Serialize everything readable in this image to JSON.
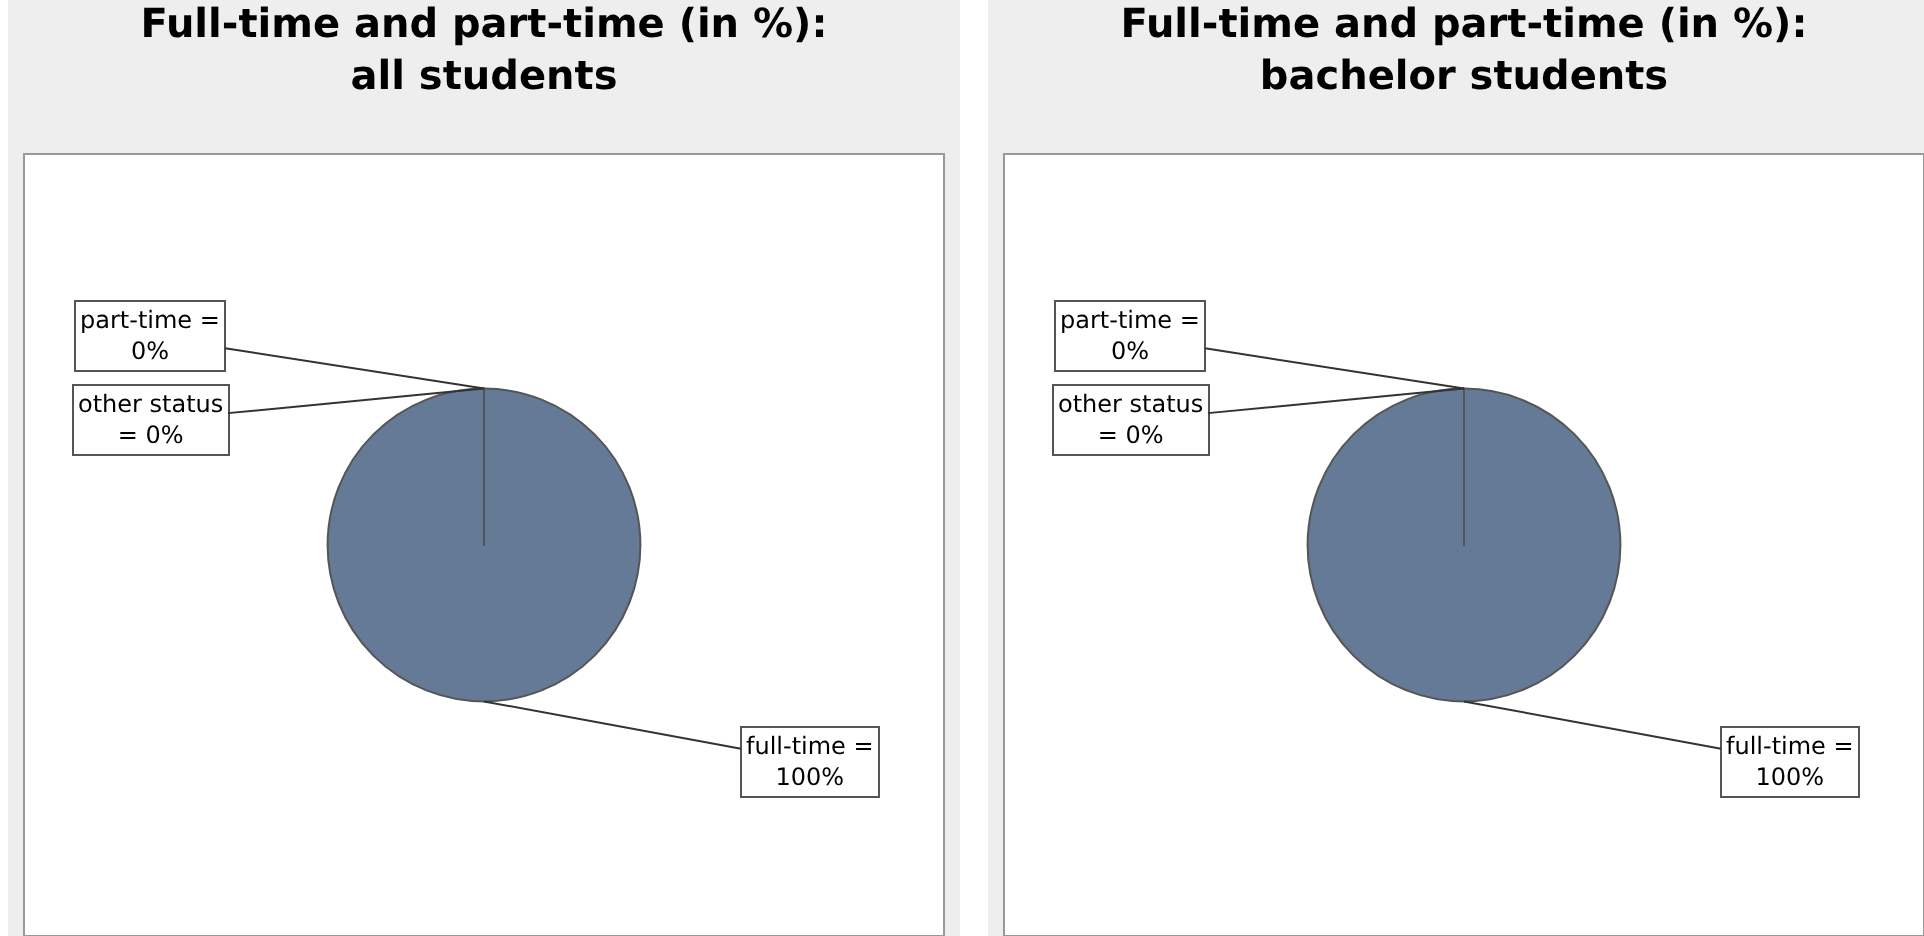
{
  "chart_data": [
    {
      "type": "pie",
      "title": "Full-time and part-time (in %):\nall students",
      "categories": [
        "full-time",
        "part-time",
        "other status"
      ],
      "values": [
        100,
        0,
        0
      ],
      "colors": [
        "#657a96",
        "#c0504d",
        "#9bbb59"
      ],
      "value_labels": [
        "= 100%",
        "= 0%",
        "= 0%"
      ],
      "legend": false
    },
    {
      "type": "pie",
      "title": "Full-time and part-time (in %):\nbachelor students",
      "categories": [
        "full-time",
        "part-time",
        "other status"
      ],
      "values": [
        100,
        0,
        0
      ],
      "colors": [
        "#657a96",
        "#c0504d",
        "#9bbb59"
      ],
      "value_labels": [
        "= 100%",
        "= 0%",
        "= 0%"
      ],
      "legend": false
    }
  ]
}
